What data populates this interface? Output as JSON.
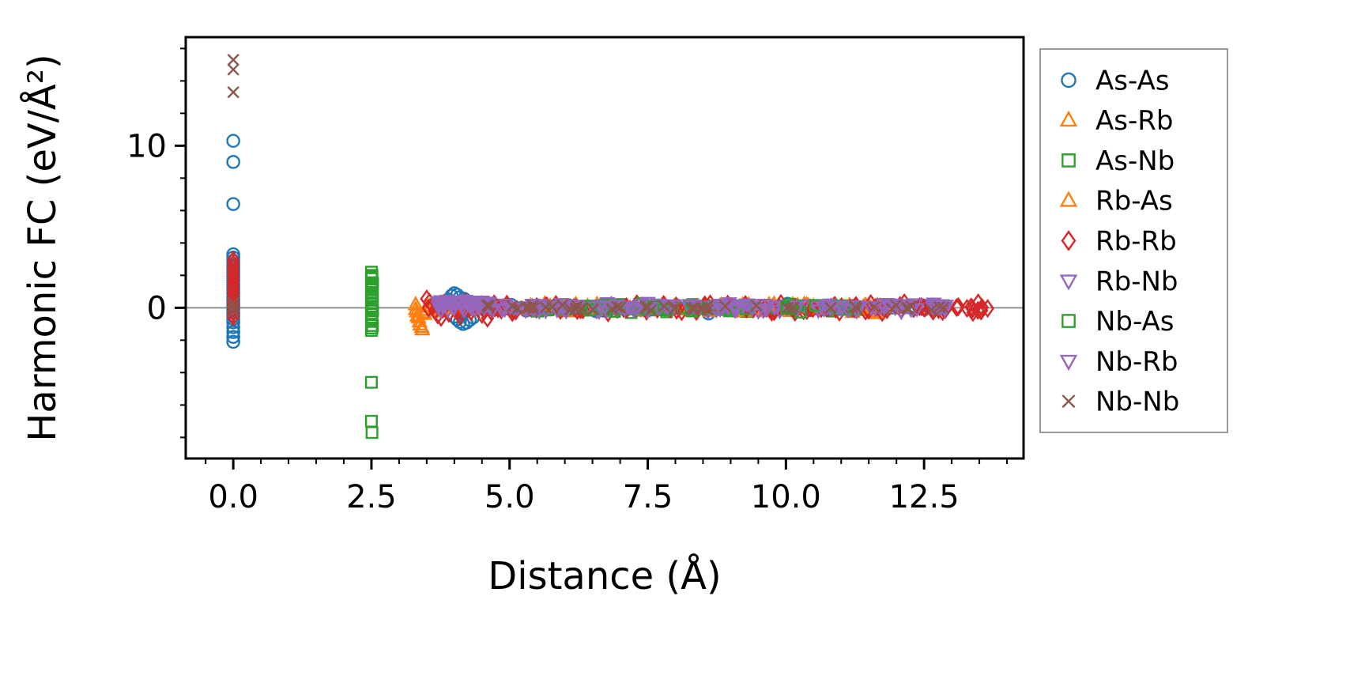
{
  "figure": {
    "background": "#ffffff"
  },
  "chart_data": {
    "type": "scatter",
    "title": "",
    "xlabel": "Distance (Å)",
    "ylabel": "Harmonic FC (eV/Å²)",
    "xlim": [
      -0.86,
      14.3
    ],
    "ylim": [
      -9.3,
      16.7
    ],
    "xticks": {
      "major": [
        0.0,
        2.5,
        5.0,
        7.5,
        10.0,
        12.5
      ],
      "labels": [
        "0.0",
        "2.5",
        "5.0",
        "7.5",
        "10.0",
        "12.5"
      ],
      "minor_step": 0.5
    },
    "yticks": {
      "major": [
        0,
        10
      ],
      "labels": [
        "0",
        "10"
      ],
      "minor_step": 2
    },
    "grid": false,
    "zero_line": {
      "y": 0,
      "color": "#909090"
    },
    "axes_color": "#000000",
    "legend": {
      "position": "right-outside",
      "border_color": "#999999",
      "background": "#ffffff"
    },
    "series": [
      {
        "name": "As-As",
        "marker": "circle",
        "color": "#1f77b4",
        "points": [
          [
            0,
            10.3
          ],
          [
            0,
            9.0
          ],
          [
            0,
            6.4
          ],
          [
            0,
            3.3
          ],
          [
            0,
            3.1
          ],
          [
            0,
            2.9
          ],
          [
            0,
            2.7
          ],
          [
            0,
            2.5
          ],
          [
            0,
            2.3
          ],
          [
            0,
            2.1
          ],
          [
            0,
            1.9
          ],
          [
            0,
            1.7
          ],
          [
            0,
            1.5
          ],
          [
            0,
            1.3
          ],
          [
            0,
            1.1
          ],
          [
            0,
            0.9
          ],
          [
            0,
            0.7
          ],
          [
            0,
            0.5
          ],
          [
            0,
            0.3
          ],
          [
            0,
            0.1
          ],
          [
            0,
            -0.1
          ],
          [
            0,
            -0.3
          ],
          [
            0,
            -0.5
          ],
          [
            0,
            -0.7
          ],
          [
            0,
            -0.9
          ],
          [
            0,
            -1.2
          ],
          [
            0,
            -1.5
          ],
          [
            0,
            -1.8
          ],
          [
            0,
            -2.1
          ],
          [
            3.9,
            0.5
          ],
          [
            3.95,
            0.75
          ],
          [
            4.0,
            0.9
          ],
          [
            4.05,
            0.8
          ],
          [
            4.1,
            0.65
          ],
          [
            4.18,
            0.55
          ],
          [
            4.0,
            -0.55
          ],
          [
            4.05,
            -0.72
          ],
          [
            4.1,
            -0.88
          ],
          [
            4.16,
            -1.0
          ],
          [
            4.22,
            -0.92
          ],
          [
            4.28,
            -0.75
          ],
          [
            4.34,
            -0.6
          ],
          [
            8.6,
            -0.35
          ],
          [
            12.35,
            0.02
          ],
          [
            12.5,
            -0.08
          ]
        ],
        "band": {
          "x_start": 4.4,
          "x_end": 12.5,
          "n": 55,
          "y_amp": 0.28,
          "y_offset": 0
        }
      },
      {
        "name": "As-Rb",
        "marker": "triangle-up",
        "color": "#ff7f0e",
        "points": [
          [
            3.3,
            0.2
          ],
          [
            3.32,
            -0.25
          ],
          [
            3.35,
            -0.6
          ],
          [
            3.38,
            -1.05
          ],
          [
            3.42,
            -1.35
          ],
          [
            3.46,
            -0.4
          ],
          [
            3.5,
            -0.15
          ],
          [
            3.55,
            0.1
          ],
          [
            11.5,
            0.15
          ],
          [
            11.55,
            -0.2
          ],
          [
            11.62,
            -0.35
          ],
          [
            11.68,
            0.05
          ],
          [
            11.75,
            -0.12
          ],
          [
            11.82,
            0.08
          ]
        ],
        "band": {
          "x_start": 3.6,
          "x_end": 11.8,
          "n": 70,
          "y_amp": 0.3,
          "y_offset": 0
        }
      },
      {
        "name": "As-Nb",
        "marker": "square",
        "color": "#2ca02c",
        "points": [
          [
            2.5,
            2.2
          ],
          [
            2.51,
            2.0
          ],
          [
            2.5,
            1.8
          ],
          [
            2.52,
            1.55
          ],
          [
            2.5,
            1.3
          ],
          [
            2.51,
            1.1
          ],
          [
            2.5,
            0.9
          ],
          [
            2.52,
            0.7
          ],
          [
            2.5,
            0.5
          ],
          [
            2.51,
            0.3
          ],
          [
            2.5,
            0.1
          ],
          [
            2.52,
            -0.1
          ],
          [
            2.5,
            -0.35
          ],
          [
            2.51,
            -0.6
          ],
          [
            2.5,
            -0.85
          ],
          [
            2.52,
            -1.1
          ],
          [
            2.5,
            -1.4
          ],
          [
            2.5,
            -4.6
          ],
          [
            2.5,
            -7.0
          ],
          [
            2.51,
            -7.7
          ],
          [
            7.2,
            -0.3
          ],
          [
            7.35,
            0.2
          ],
          [
            11.2,
            0.1
          ],
          [
            11.32,
            -0.05
          ]
        ],
        "band": {
          "x_start": 5.5,
          "x_end": 11.35,
          "n": 50,
          "y_amp": 0.28,
          "y_offset": 0
        }
      },
      {
        "name": "Rb-As",
        "marker": "triangle-up",
        "color": "#ff7f0e",
        "points": [
          [
            3.3,
            -0.1
          ],
          [
            3.33,
            -0.5
          ],
          [
            3.37,
            -0.85
          ],
          [
            3.41,
            -1.2
          ],
          [
            3.45,
            -0.3
          ],
          [
            3.5,
            0.05
          ],
          [
            11.45,
            0.1
          ],
          [
            11.6,
            -0.25
          ],
          [
            11.7,
            0.12
          ]
        ],
        "band": {
          "x_start": 3.6,
          "x_end": 11.8,
          "n": 70,
          "y_amp": 0.3,
          "y_offset": 0
        }
      },
      {
        "name": "Rb-Rb",
        "marker": "diamond",
        "color": "#d62728",
        "points": [
          [
            0,
            2.95
          ],
          [
            0,
            2.7
          ],
          [
            0,
            2.45
          ],
          [
            0,
            2.2
          ],
          [
            0,
            1.95
          ],
          [
            0,
            1.7
          ],
          [
            0,
            1.45
          ],
          [
            0,
            1.2
          ],
          [
            0,
            0.95
          ],
          [
            0,
            0.7
          ],
          [
            0,
            0.45
          ],
          [
            0,
            0.2
          ],
          [
            0,
            -0.05
          ],
          [
            0,
            -0.3
          ],
          [
            0,
            -0.55
          ],
          [
            3.5,
            0.55
          ],
          [
            3.55,
            0.35
          ],
          [
            3.6,
            0.15
          ],
          [
            3.65,
            -0.2
          ],
          [
            3.7,
            -0.45
          ],
          [
            3.76,
            -0.6
          ],
          [
            3.82,
            0.3
          ],
          [
            3.9,
            -0.35
          ],
          [
            4.0,
            0.2
          ],
          [
            4.1,
            -0.5
          ],
          [
            4.2,
            0.35
          ],
          [
            4.3,
            -0.25
          ],
          [
            4.4,
            0.15
          ],
          [
            4.5,
            -0.42
          ],
          [
            4.6,
            -0.65
          ],
          [
            4.72,
            0.25
          ],
          [
            4.85,
            -0.15
          ],
          [
            4.95,
            0.1
          ],
          [
            5.05,
            -0.3
          ],
          [
            12.75,
            0.05
          ],
          [
            12.85,
            -0.05
          ],
          [
            13.35,
            0.05
          ],
          [
            13.55,
            0.02
          ],
          [
            13.65,
            -0.04
          ]
        ],
        "band": {
          "x_start": 3.5,
          "x_end": 13.6,
          "n": 130,
          "y_amp": 0.35,
          "y_offset": 0
        }
      },
      {
        "name": "Rb-Nb",
        "marker": "triangle-down",
        "color": "#9467bd",
        "points": [
          [
            3.7,
            0.35
          ],
          [
            3.76,
            0.42
          ],
          [
            3.82,
            0.3
          ],
          [
            3.88,
            0.45
          ],
          [
            3.94,
            0.35
          ],
          [
            4.0,
            0.27
          ],
          [
            4.06,
            0.4
          ],
          [
            4.12,
            0.32
          ],
          [
            4.2,
            0.45
          ],
          [
            4.3,
            0.35
          ],
          [
            4.4,
            0.28
          ],
          [
            4.5,
            0.4
          ],
          [
            4.6,
            0.32
          ],
          [
            12.7,
            0.1
          ],
          [
            12.8,
            0.0
          ],
          [
            12.88,
            -0.1
          ]
        ],
        "band": {
          "x_start": 3.7,
          "x_end": 12.9,
          "n": 95,
          "y_amp": 0.3,
          "y_offset": 0.05
        }
      },
      {
        "name": "Nb-As",
        "marker": "square",
        "color": "#2ca02c",
        "points": [
          [
            2.5,
            1.9
          ],
          [
            2.52,
            1.45
          ],
          [
            2.5,
            0.95
          ],
          [
            2.51,
            0.6
          ],
          [
            2.5,
            0.25
          ],
          [
            2.52,
            -0.2
          ],
          [
            2.5,
            -0.7
          ],
          [
            2.51,
            -1.25
          ],
          [
            6.9,
            0.15
          ],
          [
            8.3,
            -0.2
          ],
          [
            10.9,
            0.05
          ]
        ],
        "band": {
          "x_start": 5.5,
          "x_end": 11.35,
          "n": 50,
          "y_amp": 0.28,
          "y_offset": 0
        }
      },
      {
        "name": "Nb-Rb",
        "marker": "triangle-down",
        "color": "#9467bd",
        "points": [
          [
            3.72,
            0.3
          ],
          [
            3.82,
            0.38
          ],
          [
            3.92,
            0.28
          ],
          [
            4.02,
            0.36
          ],
          [
            4.14,
            0.3
          ],
          [
            4.26,
            0.4
          ],
          [
            4.45,
            0.33
          ],
          [
            9.3,
            0.22
          ],
          [
            9.5,
            -0.2
          ],
          [
            12.76,
            0.06
          ]
        ],
        "band": {
          "x_start": 3.7,
          "x_end": 12.9,
          "n": 95,
          "y_amp": 0.3,
          "y_offset": 0.05
        }
      },
      {
        "name": "Nb-Nb",
        "marker": "x",
        "color": "#8c564b",
        "points": [
          [
            0,
            15.3
          ],
          [
            0,
            14.7
          ],
          [
            0,
            13.3
          ],
          [
            0,
            0.3
          ],
          [
            0,
            0.05
          ],
          [
            0,
            -0.2
          ],
          [
            5.05,
            0.1
          ],
          [
            6.2,
            -0.1
          ],
          [
            7.5,
            0.05
          ],
          [
            7.56,
            -0.15
          ],
          [
            8.9,
            0.1
          ],
          [
            10.1,
            -0.05
          ],
          [
            11.6,
            0.05
          ],
          [
            12.85,
            0.0
          ]
        ],
        "band": {
          "x_start": 4.3,
          "x_end": 12.9,
          "n": 45,
          "y_amp": 0.22,
          "y_offset": 0
        }
      }
    ]
  }
}
